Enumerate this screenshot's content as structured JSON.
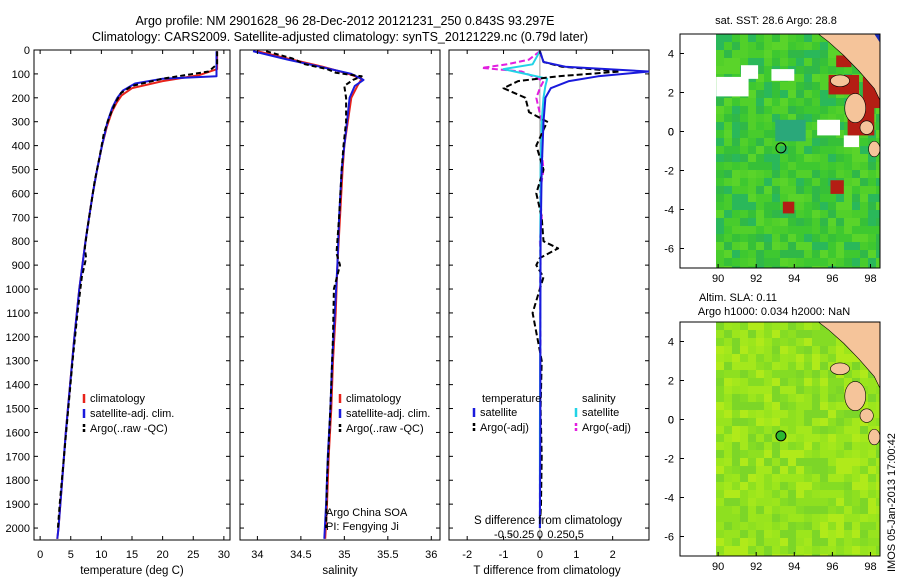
{
  "titles": {
    "line1": "Argo profile: NM 2901628_96 28-Dec-2012 20121231_250 0.843S 93.297E",
    "line2": "Climatology: CARS2009. Satellite-adjusted climatology: synTS_20121229.nc (0.79d later)"
  },
  "depth_ticks": [
    0,
    100,
    200,
    300,
    400,
    500,
    600,
    700,
    800,
    900,
    1000,
    1100,
    1200,
    1300,
    1400,
    1500,
    1600,
    1700,
    1800,
    1900,
    2000
  ],
  "colors": {
    "climatology": "#e8221a",
    "satellite": "#1a1adc",
    "argo": "#000000",
    "salinity_sat": "#22d3e6",
    "salinity_argo": "#e21ee0",
    "land": "#f5c49a",
    "ocean_green": "#3ec830",
    "sst_hot": "#b41e14",
    "sla_green": "#8ee020"
  },
  "chart_data": [
    {
      "type": "line",
      "panel": "temperature",
      "xlabel": "temperature (deg C)",
      "xlim": [
        -1,
        31
      ],
      "ylim": [
        2050,
        0
      ],
      "xticks": [
        "0",
        "5",
        "10",
        "15",
        "20",
        "25",
        "30"
      ],
      "legend": [
        "climatology",
        "satellite-adj. clim.",
        "Argo(..raw -QC)"
      ],
      "series": [
        {
          "name": "climatology",
          "depth": [
            5,
            80,
            105,
            130,
            160,
            190,
            220,
            260,
            320,
            400,
            500,
            600,
            700,
            800,
            900,
            1000,
            1200,
            1400,
            1600,
            1800,
            2000,
            2045
          ],
          "values": [
            28.9,
            28.9,
            26,
            20,
            15,
            13.3,
            12.5,
            11.7,
            10.9,
            10.1,
            9.3,
            8.6,
            8.0,
            7.4,
            6.9,
            6.4,
            5.6,
            4.9,
            4.2,
            3.6,
            3.0,
            2.8
          ]
        },
        {
          "name": "satellite-adj. clim.",
          "depth": [
            5,
            110,
            120,
            140,
            170,
            200,
            240,
            300,
            400,
            500,
            600,
            700,
            800,
            900,
            1000,
            1200,
            1400,
            1600,
            1800,
            2000,
            2045
          ],
          "values": [
            28.8,
            28.8,
            20,
            15.5,
            13.5,
            12.6,
            11.8,
            11.0,
            10.1,
            9.3,
            8.6,
            8.0,
            7.4,
            6.9,
            6.4,
            5.6,
            4.9,
            4.2,
            3.6,
            3.0,
            2.8
          ]
        },
        {
          "name": "Argo(..raw -QC)",
          "depth": [
            5,
            60,
            90,
            120,
            150,
            180,
            220,
            280,
            350,
            450,
            550,
            650,
            750,
            830,
            870,
            950,
            1100,
            1300,
            1500,
            1700,
            1900,
            2000
          ],
          "values": [
            28.9,
            28.9,
            27.5,
            20,
            15,
            13.2,
            12.3,
            11.3,
            10.4,
            9.7,
            8.9,
            8.3,
            7.7,
            7.3,
            7.5,
            6.8,
            6.1,
            5.3,
            4.6,
            3.9,
            3.2,
            2.9
          ]
        }
      ]
    },
    {
      "type": "line",
      "panel": "salinity",
      "xlabel": "salinity",
      "xlim": [
        33.8,
        36.1
      ],
      "ylim": [
        2050,
        0
      ],
      "xticks": [
        "34",
        "34.5",
        "35",
        "35.5",
        "36"
      ],
      "legend": [
        "climatology",
        "satellite-adj. clim.",
        "Argo(..raw -QC)"
      ],
      "annotation": [
        "Argo China SOA",
        "PI: Fengying Ji"
      ],
      "series": [
        {
          "name": "climatology",
          "depth": [
            5,
            40,
            70,
            100,
            120,
            150,
            200,
            300,
            400,
            500,
            700,
            900,
            1100,
            1300,
            1500,
            1700,
            1900,
            2045
          ],
          "values": [
            34.0,
            34.4,
            34.75,
            35.05,
            35.2,
            35.15,
            35.08,
            35.04,
            35.0,
            34.98,
            34.95,
            34.92,
            34.9,
            34.87,
            34.85,
            34.82,
            34.8,
            34.78
          ]
        },
        {
          "name": "satellite-adj. clim.",
          "depth": [
            5,
            40,
            70,
            100,
            125,
            150,
            200,
            300,
            400,
            500,
            700,
            900,
            1100,
            1300,
            1500,
            1700,
            1900,
            2045
          ],
          "values": [
            33.95,
            34.35,
            34.72,
            35.08,
            35.22,
            35.12,
            35.06,
            35.03,
            35.0,
            34.97,
            34.94,
            34.92,
            34.89,
            34.86,
            34.84,
            34.81,
            34.79,
            34.77
          ]
        },
        {
          "name": "Argo(..raw -QC)",
          "depth": [
            5,
            35,
            60,
            80,
            95,
            110,
            125,
            150,
            200,
            300,
            400,
            500,
            700,
            850,
            900,
            1000,
            1200,
            1500,
            1800,
            2000
          ],
          "values": [
            34.1,
            34.4,
            34.55,
            34.8,
            34.9,
            35.2,
            35.1,
            35.0,
            35.02,
            35.02,
            34.99,
            34.97,
            34.94,
            34.91,
            34.95,
            34.88,
            34.87,
            34.84,
            34.8,
            34.79
          ]
        }
      ]
    },
    {
      "type": "line",
      "panel": "difference",
      "xlabel": "T difference from climatology",
      "xlabel_top": "S difference from climatology",
      "xlim": [
        -2.5,
        3
      ],
      "ylim": [
        2050,
        0
      ],
      "xticks": [
        "-2",
        "-1",
        "0",
        "1",
        "2"
      ],
      "s_xticks": [
        "-0.5",
        "-0.25",
        "0",
        "0.25",
        "0.5"
      ],
      "legend_left_title": "temperature",
      "legend_right_title": "salinity",
      "legend_left": [
        "satellite",
        "Argo(-adj)"
      ],
      "legend_right": [
        "satellite",
        "Argo(-adj)"
      ],
      "series": [
        {
          "name": "satellite",
          "quantity": "temperature",
          "depth": [
            5,
            50,
            70,
            90,
            110,
            130,
            160,
            200,
            300,
            500,
            800,
            1200,
            1600,
            2000
          ],
          "values": [
            0,
            0.1,
            0.7,
            3.0,
            1.6,
            0.8,
            0.3,
            0.15,
            0.1,
            0.05,
            0.02,
            0.01,
            0.01,
            0
          ]
        },
        {
          "name": "Argo(-adj)",
          "quantity": "temperature",
          "depth": [
            5,
            50,
            70,
            90,
            110,
            130,
            160,
            200,
            260,
            300,
            400,
            500,
            600,
            700,
            800,
            830,
            870,
            900,
            950,
            1100,
            1300,
            1500,
            1700,
            1900,
            2000
          ],
          "values": [
            0,
            0.1,
            0.6,
            2.2,
            0.5,
            -0.6,
            -1.0,
            -0.4,
            -0.3,
            0.2,
            -0.1,
            0.1,
            -0.1,
            0.05,
            0.1,
            0.5,
            0.0,
            -0.1,
            0.1,
            -0.2,
            0.05,
            0.02,
            0.05,
            0.03,
            0
          ]
        },
        {
          "name": "satellite",
          "quantity": "salinity",
          "depth": [
            5,
            60,
            80,
            100,
            120,
            150,
            200,
            300,
            500,
            800,
            1200,
            1600,
            2000
          ],
          "values": [
            0,
            -0.2,
            -1.0,
            -0.4,
            0.2,
            0.15,
            0.1,
            0.05,
            0.02,
            0.01,
            0.01,
            0,
            0
          ]
        },
        {
          "name": "Argo(-adj)",
          "quantity": "salinity",
          "depth": [
            5,
            40,
            60,
            75,
            90,
            110,
            130,
            160,
            200,
            300,
            400,
            500,
            600,
            700,
            800,
            900,
            1000,
            1200,
            1500,
            1800,
            2000
          ],
          "values": [
            0,
            -0.3,
            -0.9,
            -1.6,
            -0.5,
            -0.2,
            0.1,
            0.0,
            -0.1,
            0.05,
            0.03,
            0.1,
            0.0,
            0.05,
            0.0,
            0.02,
            0.0,
            0.02,
            0.01,
            0.0,
            0
          ]
        }
      ]
    },
    {
      "type": "heatmap",
      "panel": "sst-map",
      "title": "sat. SST: 28.6  Argo: 28.8",
      "xlim": [
        88,
        98.5
      ],
      "ylim": [
        -7,
        5
      ],
      "xticks": [
        "90",
        "92",
        "94",
        "96",
        "98"
      ],
      "yticks": [
        "4",
        "2",
        "0",
        "-2",
        "-4",
        "-6"
      ],
      "marker": {
        "lon": 93.3,
        "lat": -0.84
      }
    },
    {
      "type": "heatmap",
      "panel": "sla-map",
      "title_line1": "Altim. SLA: 0.11",
      "title_line2": "Argo h1000: 0.034  h2000: NaN",
      "xlim": [
        88,
        98.5
      ],
      "ylim": [
        -7,
        5
      ],
      "xticks": [
        "90",
        "92",
        "94",
        "96",
        "98"
      ],
      "yticks": [
        "4",
        "2",
        "0",
        "-2",
        "-4",
        "-6"
      ],
      "marker": {
        "lon": 93.3,
        "lat": -0.84
      }
    }
  ],
  "stamp": "IMOS 05-Jan-2013 17:00:42"
}
